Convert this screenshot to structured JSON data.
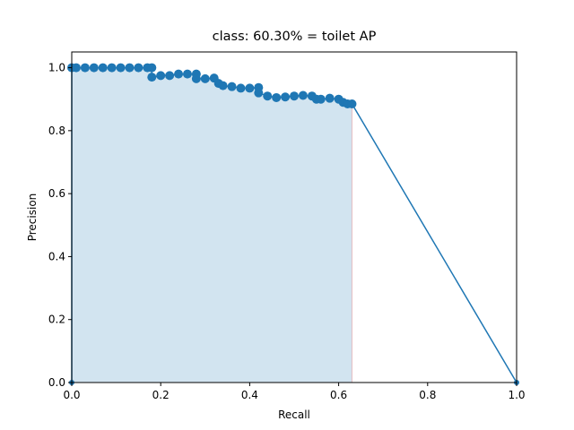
{
  "chart_data": {
    "type": "line",
    "title": "class: 60.30% = toilet AP",
    "xlabel": "Recall",
    "ylabel": "Precision",
    "xlim": [
      0,
      1
    ],
    "ylim": [
      0,
      1.05
    ],
    "xticks": [
      "0.0",
      "0.2",
      "0.4",
      "0.6",
      "0.8",
      "1.0"
    ],
    "yticks": [
      "0.0",
      "0.2",
      "0.4",
      "0.6",
      "0.8",
      "1.0"
    ],
    "grid": false,
    "colors": {
      "line": "#1f77b4",
      "area": "#1f77b4",
      "area_edge": "#d62728"
    },
    "series": [
      {
        "recall": [
          0.0,
          0.0,
          0.01,
          0.03,
          0.05,
          0.07,
          0.09,
          0.11,
          0.13,
          0.15,
          0.17,
          0.18,
          0.18,
          0.2,
          0.22,
          0.24,
          0.26,
          0.28,
          0.28,
          0.3,
          0.32,
          0.33,
          0.34,
          0.36,
          0.38,
          0.4,
          0.42,
          0.42,
          0.44,
          0.46,
          0.48,
          0.5,
          0.52,
          0.54,
          0.55,
          0.56,
          0.58,
          0.6,
          0.61,
          0.62,
          0.63,
          1.0
        ],
        "precision": [
          0.0,
          1.0,
          1.0,
          1.0,
          1.0,
          1.0,
          1.0,
          1.0,
          1.0,
          1.0,
          1.0,
          1.0,
          0.97,
          0.975,
          0.975,
          0.98,
          0.98,
          0.98,
          0.965,
          0.965,
          0.967,
          0.95,
          0.943,
          0.94,
          0.935,
          0.935,
          0.937,
          0.92,
          0.91,
          0.905,
          0.907,
          0.91,
          0.912,
          0.91,
          0.9,
          0.9,
          0.903,
          0.9,
          0.89,
          0.885,
          0.885,
          0.0
        ]
      }
    ],
    "ap_area": {
      "recall": [
        0.0,
        0.18,
        0.18,
        0.28,
        0.28,
        0.33,
        0.33,
        0.36,
        0.36,
        0.42,
        0.42,
        0.54,
        0.54,
        0.58,
        0.58,
        0.6,
        0.6,
        0.63
      ],
      "precision": [
        1.0,
        1.0,
        0.98,
        0.98,
        0.967,
        0.967,
        0.943,
        0.943,
        0.937,
        0.937,
        0.912,
        0.912,
        0.903,
        0.903,
        0.9,
        0.9,
        0.885,
        0.885
      ]
    }
  }
}
